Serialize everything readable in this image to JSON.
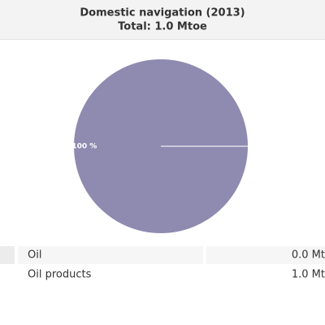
{
  "chart_data": {
    "type": "pie",
    "title": "Domestic navigation (2013)",
    "subtitle": "Total: 1.0 Mtoe",
    "categories": [
      "Oil",
      "Oil products"
    ],
    "values": [
      0,
      100
    ],
    "value_labels": [
      null,
      "100 %"
    ],
    "colors": [
      "#c9c9d9",
      "#8f8ab0"
    ]
  },
  "table": {
    "rows": [
      [
        "Oil",
        "0.0 Mt"
      ],
      [
        "Oil products",
        "1.0 Mt"
      ]
    ]
  }
}
